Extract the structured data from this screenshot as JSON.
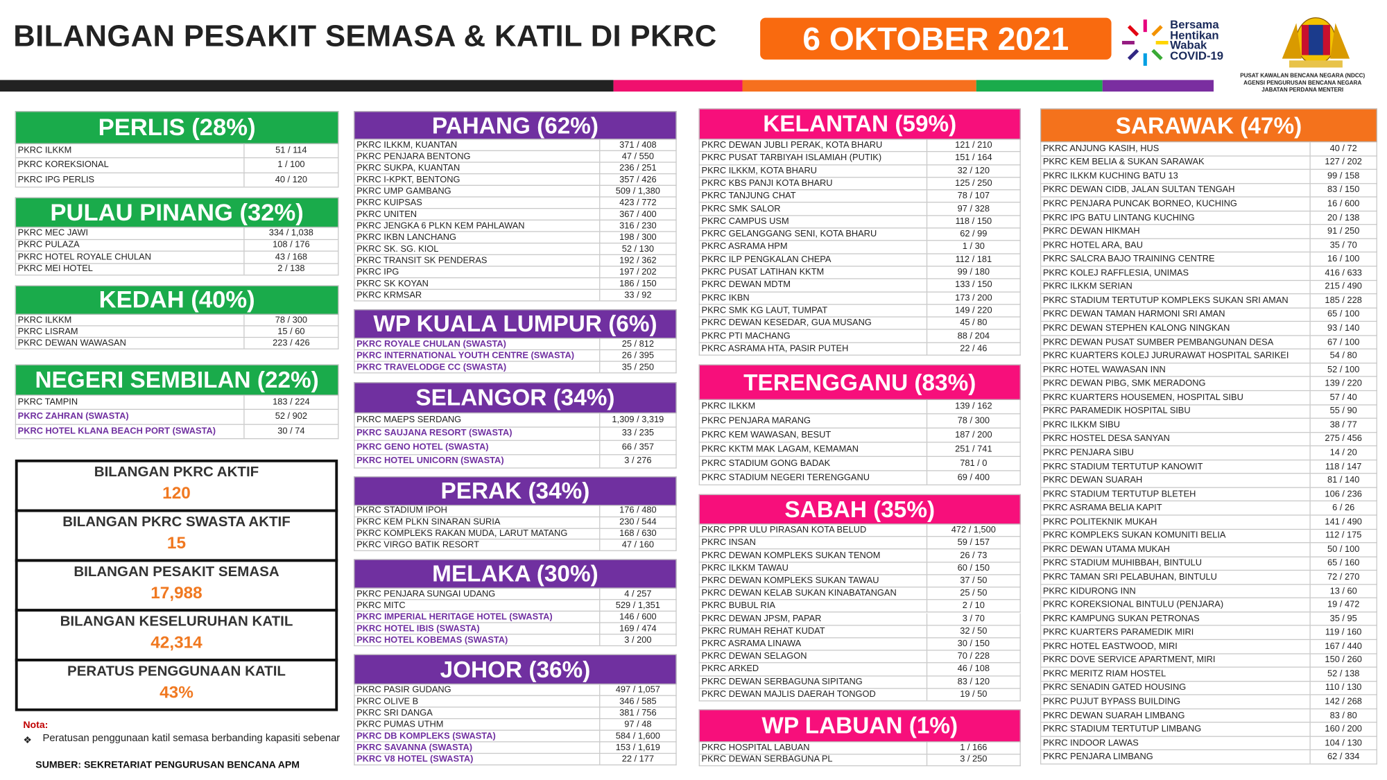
{
  "header": {
    "title": "BILANGAN PESAKIT SEMASA & KATIL DI PKRC",
    "date": "6 OKTOBER 2021",
    "campaign": [
      "Bersama",
      "Hentikan",
      "Wabak",
      "COVID-19"
    ],
    "agency": [
      "PUSAT KAWALAN BENCANA NEGARA (NDCC)",
      "AGENSI PENGURUSAN BENCANA NEGARA",
      "JABATAN PERDANA MENTERI"
    ]
  },
  "regions": [
    {
      "title": "PERLIS (28%)",
      "rows": [
        [
          "PKRC ILKKM",
          "51 / 114"
        ],
        [
          "PKRC KOREKSIONAL",
          "1 / 100"
        ],
        [
          "PKRC IPG PERLIS",
          "40 / 120"
        ]
      ]
    },
    {
      "title": "PULAU PINANG (32%)",
      "rows": [
        [
          "PKRC MEC JAWI",
          "334 / 1,038"
        ],
        [
          "PKRC PULAZA",
          "108 / 176"
        ],
        [
          "PKRC HOTEL ROYALE CHULAN",
          "43 / 168"
        ],
        [
          "PKRC MEI HOTEL",
          "2 / 138"
        ]
      ]
    },
    {
      "title": "KEDAH (40%)",
      "rows": [
        [
          "PKRC ILKKM",
          "78 / 300"
        ],
        [
          "PKRC LISRAM",
          "15 / 60"
        ],
        [
          "PKRC DEWAN WAWASAN",
          "223 / 426"
        ]
      ]
    },
    {
      "title": "NEGERI SEMBILAN (22%)",
      "rows": [
        [
          "PKRC TAMPIN",
          "183 / 224"
        ],
        [
          "PKRC ZAHRAN (SWASTA)",
          "52 / 902"
        ],
        [
          "PKRC HOTEL KLANA BEACH PORT (SWASTA)",
          "30 / 74"
        ]
      ]
    },
    {
      "title": "PAHANG (62%)",
      "rows": [
        [
          "PKRC ILKKM, KUANTAN",
          "371 / 408"
        ],
        [
          "PKRC PENJARA BENTONG",
          "47 / 550"
        ],
        [
          "PKRC SUKPA, KUANTAN",
          "236 / 251"
        ],
        [
          "PKRC I-KPKT, BENTONG",
          "357 / 426"
        ],
        [
          "PKRC UMP GAMBANG",
          "509 / 1,380"
        ],
        [
          "PKRC KUIPSAS",
          "423 / 772"
        ],
        [
          "PKRC UNITEN",
          "367 / 400"
        ],
        [
          "PKRC JENGKA 6 PLKN KEM PAHLAWAN",
          "316 / 230"
        ],
        [
          "PKRC IKBN LANCHANG",
          "198 / 300"
        ],
        [
          "PKRC SK. SG. KIOL",
          "52 / 130"
        ],
        [
          "PKRC TRANSIT SK PENDERAS",
          "192 / 362"
        ],
        [
          "PKRC IPG",
          "197 / 202"
        ],
        [
          "PKRC SK KOYAN",
          "186 / 150"
        ],
        [
          "PKRC KRMSAR",
          "33 / 92"
        ]
      ]
    },
    {
      "title": "WP KUALA LUMPUR (6%)",
      "rows": [
        [
          "PKRC ROYALE CHULAN (SWASTA)",
          "25 / 812"
        ],
        [
          "PKRC INTERNATIONAL YOUTH CENTRE (SWASTA)",
          "26 / 395"
        ],
        [
          "PKRC TRAVELODGE CC (SWASTA)",
          "35 / 250"
        ]
      ]
    },
    {
      "title": "SELANGOR (34%)",
      "rows": [
        [
          "PKRC MAEPS SERDANG",
          "1,309 / 3,319"
        ],
        [
          "PKRC SAUJANA RESORT (SWASTA)",
          "33 / 235"
        ],
        [
          "PKRC GENO HOTEL (SWASTA)",
          "66 / 357"
        ],
        [
          "PKRC HOTEL UNICORN (SWASTA)",
          "3 / 276"
        ]
      ]
    },
    {
      "title": "PERAK (34%)",
      "rows": [
        [
          "PKRC STADIUM IPOH",
          "176 / 480"
        ],
        [
          "PKRC KEM PLKN SINARAN SURIA",
          "230 / 544"
        ],
        [
          "PKRC KOMPLEKS RAKAN MUDA, LARUT MATANG",
          "168 / 630"
        ],
        [
          "PKRC VIRGO BATIK RESORT",
          "47 / 160"
        ]
      ]
    },
    {
      "title": "MELAKA (30%)",
      "rows": [
        [
          "PKRC PENJARA SUNGAI UDANG",
          "4 / 257"
        ],
        [
          "PKRC MITC",
          "529 / 1,351"
        ],
        [
          "PKRC IMPERIAL HERITAGE HOTEL (SWASTA)",
          "146 / 600"
        ],
        [
          "PKRC HOTEL IBIS (SWASTA)",
          "169 / 474"
        ],
        [
          "PKRC HOTEL KOBEMAS (SWASTA)",
          "3 / 200"
        ]
      ]
    },
    {
      "title": "JOHOR (36%)",
      "rows": [
        [
          "PKRC PASIR GUDANG",
          "497 / 1,057"
        ],
        [
          "PKRC OLIVE B",
          "346 / 585"
        ],
        [
          "PKRC SRI DANGA",
          "381 / 756"
        ],
        [
          "PKRC PUMAS UTHM",
          "97 / 48"
        ],
        [
          "PKRC DB KOMPLEKS (SWASTA)",
          "584 / 1,600"
        ],
        [
          "PKRC SAVANNA (SWASTA)",
          "153 / 1,619"
        ],
        [
          "PKRC V8 HOTEL (SWASTA)",
          "22 / 177"
        ]
      ]
    },
    {
      "title": "KELANTAN (59%)",
      "rows": [
        [
          "PKRC DEWAN JUBLI PERAK, KOTA BHARU",
          "121 / 210"
        ],
        [
          "PKRC PUSAT TARBIYAH ISLAMIAH (PUTIK)",
          "151 / 164"
        ],
        [
          "PKRC ILKKM, KOTA BHARU",
          "32 / 120"
        ],
        [
          "PKRC KBS PANJI KOTA BHARU",
          "125 / 250"
        ],
        [
          "PKRC TANJUNG CHAT",
          "78 / 107"
        ],
        [
          "PKRC SMK SALOR",
          "97 / 328"
        ],
        [
          "PKRC CAMPUS USM",
          "118 / 150"
        ],
        [
          "PKRC GELANGGANG SENI, KOTA BHARU",
          "62 / 99"
        ],
        [
          "PKRC ASRAMA HPM",
          "1 / 30"
        ],
        [
          "PKRC ILP PENGKALAN CHEPA",
          "112 / 181"
        ],
        [
          "PKRC PUSAT LATIHAN KKTM",
          "99 / 180"
        ],
        [
          "PKRC DEWAN MDTM",
          "133 / 150"
        ],
        [
          "PKRC IKBN",
          "173 / 200"
        ],
        [
          "PKRC SMK KG LAUT, TUMPAT",
          "149 / 220"
        ],
        [
          "PKRC DEWAN KESEDAR, GUA MUSANG",
          "45 / 80"
        ],
        [
          "PKRC PTI MACHANG",
          "88 / 204"
        ],
        [
          "PKRC ASRAMA HTA, PASIR PUTEH",
          "22 / 46"
        ]
      ]
    },
    {
      "title": "TERENGGANU (83%)",
      "rows": [
        [
          "PKRC ILKKM",
          "139 / 162"
        ],
        [
          "PKRC PENJARA MARANG",
          "78 / 300"
        ],
        [
          "PKRC KEM WAWASAN, BESUT",
          "187 / 200"
        ],
        [
          "PKRC KKTM MAK LAGAM, KEMAMAN",
          "251 / 741"
        ],
        [
          "PKRC STADIUM GONG BADAK",
          "781 / 0"
        ],
        [
          "PKRC STADIUM NEGERI TERENGGANU",
          "69 / 400"
        ]
      ]
    },
    {
      "title": "SABAH (35%)",
      "rows": [
        [
          "PKRC PPR ULU PIRASAN KOTA BELUD",
          "472 / 1,500"
        ],
        [
          "PKRC INSAN",
          "59 / 157"
        ],
        [
          "PKRC DEWAN KOMPLEKS SUKAN TENOM",
          "26 / 73"
        ],
        [
          "PKRC ILKKM TAWAU",
          "60 / 150"
        ],
        [
          "PKRC DEWAN KOMPLEKS SUKAN TAWAU",
          "37 / 50"
        ],
        [
          "PKRC DEWAN KELAB SUKAN KINABATANGAN",
          "25 / 50"
        ],
        [
          "PKRC BUBUL RIA",
          "2 / 10"
        ],
        [
          "PKRC DEWAN JPSM, PAPAR",
          "3 / 70"
        ],
        [
          "PKRC RUMAH REHAT KUDAT",
          "32 / 50"
        ],
        [
          "PKRC ASRAMA LINAWA",
          "30 / 150"
        ],
        [
          "PKRC DEWAN SELAGON",
          "70 / 228"
        ],
        [
          "PKRC ARKED",
          "46 / 108"
        ],
        [
          "PKRC DEWAN SERBAGUNA SIPITANG",
          "83 / 120"
        ],
        [
          "PKRC DEWAN MAJLIS DAERAH TONGOD",
          "19 / 50"
        ]
      ]
    },
    {
      "title": "WP LABUAN (1%)",
      "rows": [
        [
          "PKRC HOSPITAL LABUAN",
          "1 / 166"
        ],
        [
          "PKRC DEWAN SERBAGUNA PL",
          "3 / 250"
        ]
      ]
    },
    {
      "title": "SARAWAK (47%)",
      "rows": [
        [
          "PKRC ANJUNG KASIH, HUS",
          "40 / 72"
        ],
        [
          "PKRC KEM BELIA & SUKAN SARAWAK",
          "127 / 202"
        ],
        [
          "PKRC ILKKM KUCHING BATU 13",
          "99 / 158"
        ],
        [
          "PKRC DEWAN CIDB, JALAN SULTAN TENGAH",
          "83 / 150"
        ],
        [
          "PKRC PENJARA PUNCAK BORNEO, KUCHING",
          "16 / 600"
        ],
        [
          "PKRC IPG BATU LINTANG KUCHING",
          "20 / 138"
        ],
        [
          "PKRC DEWAN HIKMAH",
          "91 / 250"
        ],
        [
          "PKRC HOTEL ARA, BAU",
          "35 / 70"
        ],
        [
          "PKRC SALCRA BAJO TRAINING CENTRE",
          "16 / 100"
        ],
        [
          "PKRC KOLEJ RAFFLESIA, UNIMAS",
          "416 / 633"
        ],
        [
          "PKRC ILKKM SERIAN",
          "215 / 490"
        ],
        [
          "PKRC STADIUM TERTUTUP KOMPLEKS SUKAN SRI AMAN",
          "185 / 228"
        ],
        [
          "PKRC DEWAN TAMAN HARMONI SRI AMAN",
          "65 / 100"
        ],
        [
          "PKRC DEWAN STEPHEN KALONG NINGKAN",
          "93 / 140"
        ],
        [
          "PKRC DEWAN PUSAT SUMBER PEMBANGUNAN DESA",
          "67 / 100"
        ],
        [
          "PKRC KUARTERS  KOLEJ JURURAWAT HOSPITAL SARIKEI",
          "54 / 80"
        ],
        [
          "PKRC HOTEL WAWASAN INN",
          "52 / 100"
        ],
        [
          "PKRC DEWAN PIBG, SMK MERADONG",
          "139 / 220"
        ],
        [
          "PKRC KUARTERS HOUSEMEN, HOSPITAL SIBU",
          "57 / 40"
        ],
        [
          "PKRC PARAMEDIK HOSPITAL SIBU",
          "55 / 90"
        ],
        [
          "PKRC ILKKM SIBU",
          "38 / 77"
        ],
        [
          "PKRC HOSTEL DESA SANYAN",
          "275 / 456"
        ],
        [
          "PKRC PENJARA SIBU",
          "14 / 20"
        ],
        [
          "PKRC STADIUM TERTUTUP KANOWIT",
          "118 / 147"
        ],
        [
          "PKRC DEWAN SUARAH",
          "81 / 140"
        ],
        [
          "PKRC STADIUM TERTUTUP BLETEH",
          "106 / 236"
        ],
        [
          "PKRC ASRAMA BELIA KAPIT",
          "6 / 26"
        ],
        [
          "PKRC POLITEKNIK MUKAH",
          "141 / 490"
        ],
        [
          "PKRC KOMPLEKS SUKAN KOMUNITI BELIA",
          "112 / 175"
        ],
        [
          "PKRC DEWAN UTAMA MUKAH",
          "50 / 100"
        ],
        [
          "PKRC STADIUM MUHIBBAH, BINTULU",
          "65 / 160"
        ],
        [
          "PKRC TAMAN SRI PELABUHAN, BINTULU",
          "72 / 270"
        ],
        [
          "PKRC KIDURONG INN",
          "13 / 60"
        ],
        [
          "PKRC KOREKSIONAL BINTULU (PENJARA)",
          "19 / 472"
        ],
        [
          "PKRC KAMPUNG SUKAN PETRONAS",
          "35 / 95"
        ],
        [
          "PKRC KUARTERS PARAMEDIK MIRI",
          "119 / 160"
        ],
        [
          "PKRC HOTEL EASTWOOD, MIRI",
          "167 / 440"
        ],
        [
          "PKRC DOVE SERVICE APARTMENT, MIRI",
          "150 / 260"
        ],
        [
          "PKRC MERITZ RIAM HOSTEL",
          "52 / 138"
        ],
        [
          "PKRC SENADIN GATED HOUSING",
          "110 / 130"
        ],
        [
          "PKRC PUJUT BYPASS BUILDING",
          "142 / 268"
        ],
        [
          "PKRC DEWAN SUARAH LIMBANG",
          "83 / 80"
        ],
        [
          "PKRC STADIUM TERTUTUP LIMBANG",
          "160 / 200"
        ],
        [
          "PKRC INDOOR LAWAS",
          "104 / 130"
        ],
        [
          "PKRC PENJARA LIMBANG",
          "62 / 334"
        ]
      ]
    }
  ],
  "summary": [
    {
      "label": "BILANGAN PKRC AKTIF",
      "value": "120"
    },
    {
      "label": "BILANGAN PKRC SWASTA AKTIF",
      "value": "15"
    },
    {
      "label": "BILANGAN PESAKIT SEMASA",
      "value": "17,988"
    },
    {
      "label": "BILANGAN KESELURUHAN KATIL",
      "value": "42,314"
    },
    {
      "label": "PERATUS PENGGUNAAN KATIL",
      "value": "43%"
    }
  ],
  "note": {
    "heading": "Nota:",
    "text": "Peratusan penggunaan katil semasa berbanding kapasiti sebenar"
  },
  "source": "SUMBER: SEKRETARIAT PENGURUSAN BENCANA APM"
}
